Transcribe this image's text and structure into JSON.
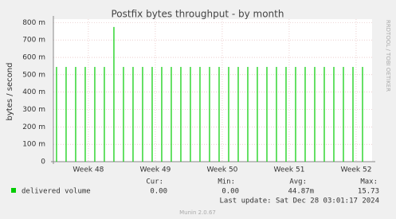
{
  "chart_data": {
    "type": "spike",
    "title": "Postfix bytes throughput - by month",
    "y_label": "bytes / second",
    "side_label": "RRDTOOL / TOBI OETIKER",
    "x": [
      0,
      1,
      2,
      3,
      4,
      5,
      6,
      7,
      8,
      9,
      10,
      11,
      12,
      13,
      14,
      15,
      16,
      17,
      18,
      19,
      20,
      21,
      22,
      23,
      24,
      25,
      26,
      27,
      28,
      29,
      30,
      31,
      32
    ],
    "series": [
      {
        "name": "delivered volume",
        "color": "#00cc00",
        "values": [
          0.545,
          0.545,
          0.545,
          0.545,
          0.545,
          0.545,
          0.775,
          0.545,
          0.545,
          0.545,
          0.545,
          0.545,
          0.545,
          0.545,
          0.545,
          0.545,
          0.545,
          0.545,
          0.545,
          0.545,
          0.545,
          0.545,
          0.545,
          0.545,
          0.545,
          0.545,
          0.545,
          0.545,
          0.545,
          0.545,
          0.545,
          0.545,
          0.545
        ]
      }
    ],
    "xlim": [
      -0.33,
      33
    ],
    "xticks": [
      {
        "value": 3.33,
        "label": "Week 48"
      },
      {
        "value": 10.33,
        "label": "Week 49"
      },
      {
        "value": 17.33,
        "label": "Week 50"
      },
      {
        "value": 24.33,
        "label": "Week 51"
      },
      {
        "value": 31.33,
        "label": "Week 52"
      }
    ],
    "ylim": [
      0,
      0.82
    ],
    "yticks": [
      0,
      {
        "value": 0.1,
        "label": "100 m"
      },
      {
        "value": 0.2,
        "label": "200 m"
      },
      {
        "value": 0.3,
        "label": "300 m"
      },
      {
        "value": 0.4,
        "label": "400 m"
      },
      {
        "value": 0.5,
        "label": "500 m"
      },
      {
        "value": 0.6,
        "label": "600 m"
      },
      {
        "value": 0.7,
        "label": "700 m"
      },
      {
        "value": 0.8,
        "label": "800 m"
      }
    ],
    "grid": true
  },
  "footer": {
    "columns": [
      "Cur:",
      "Min:",
      "Avg:",
      "Max:"
    ],
    "stats": [
      "0.00",
      "0.00",
      "44.87m",
      "15.73"
    ],
    "last_update": "Last update: Sat Dec 28 03:01:17 2024",
    "version": "Munin 2.0.67"
  }
}
